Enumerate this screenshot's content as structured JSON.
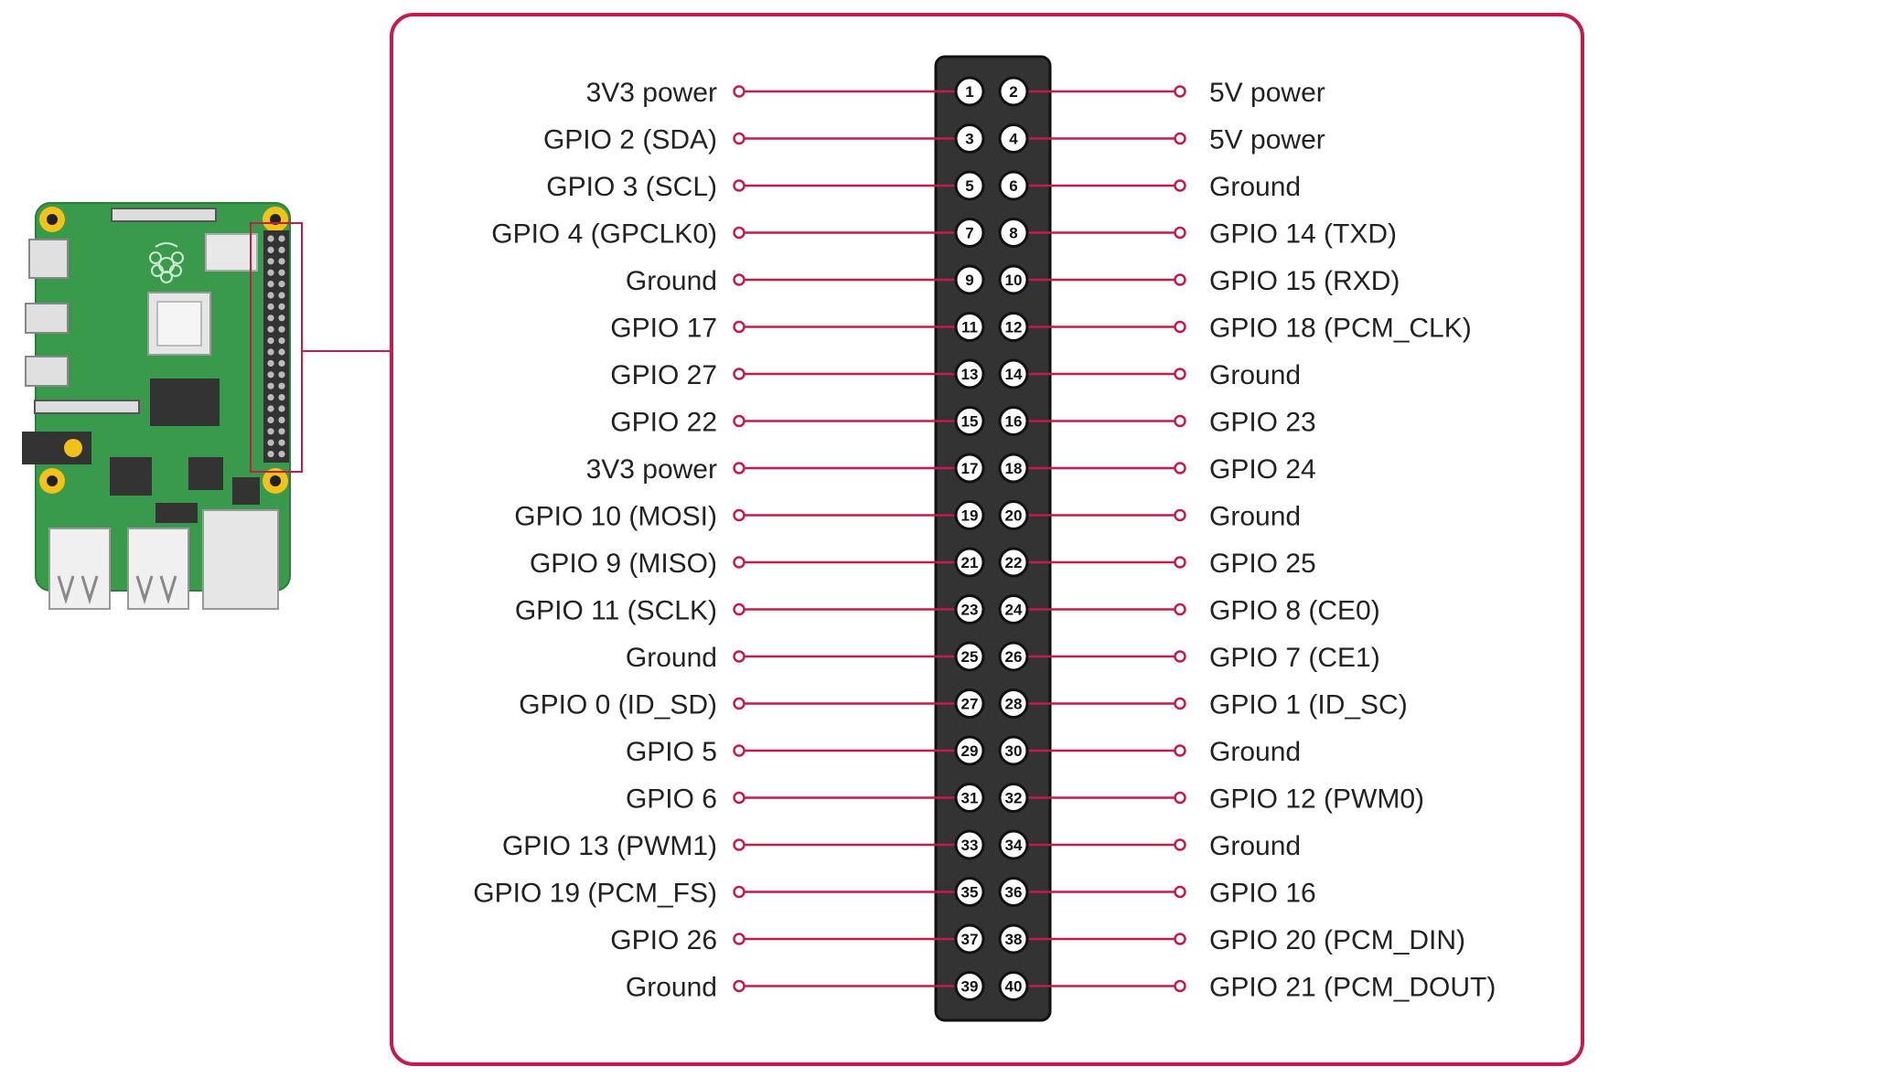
{
  "colors": {
    "accent": "#c51a4a",
    "header": "#333333",
    "pin_fill": "#ffffff",
    "label": "#222222",
    "board": "#3a9a4c",
    "mount_hole": "#f2c21b"
  },
  "left_labels": [
    "3V3 power",
    "GPIO 2 (SDA)",
    "GPIO 3 (SCL)",
    "GPIO 4 (GPCLK0)",
    "Ground",
    "GPIO 17",
    "GPIO 27",
    "GPIO 22",
    "3V3 power",
    "GPIO 10 (MOSI)",
    "GPIO 9 (MISO)",
    "GPIO 11 (SCLK)",
    "Ground",
    "GPIO 0 (ID_SD)",
    "GPIO 5",
    "GPIO 6",
    "GPIO 13 (PWM1)",
    "GPIO 19 (PCM_FS)",
    "GPIO 26",
    "Ground"
  ],
  "right_labels": [
    "5V power",
    "5V power",
    "Ground",
    "GPIO 14 (TXD)",
    "GPIO 15 (RXD)",
    "GPIO 18 (PCM_CLK)",
    "Ground",
    "GPIO 23",
    "GPIO 24",
    "Ground",
    "GPIO 25",
    "GPIO 8 (CE0)",
    "GPIO 7 (CE1)",
    "GPIO 1 (ID_SC)",
    "Ground",
    "GPIO 12 (PWM0)",
    "Ground",
    "GPIO 16",
    "GPIO 20 (PCM_DIN)",
    "GPIO 21 (PCM_DOUT)"
  ],
  "left_pins": [
    "1",
    "3",
    "5",
    "7",
    "9",
    "11",
    "13",
    "15",
    "17",
    "19",
    "21",
    "23",
    "25",
    "27",
    "29",
    "31",
    "33",
    "35",
    "37",
    "39"
  ],
  "right_pins": [
    "2",
    "4",
    "6",
    "8",
    "10",
    "12",
    "14",
    "16",
    "18",
    "20",
    "22",
    "24",
    "26",
    "28",
    "30",
    "32",
    "34",
    "36",
    "38",
    "40"
  ]
}
